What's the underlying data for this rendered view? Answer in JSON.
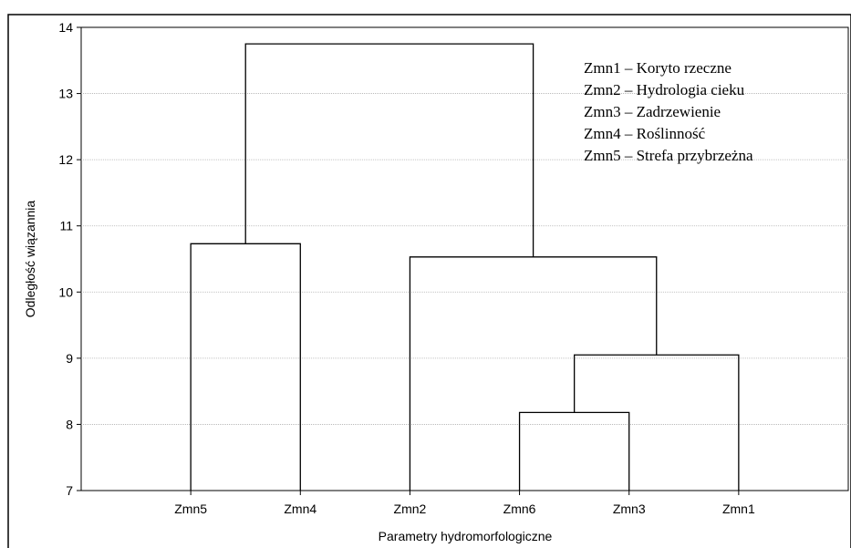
{
  "chart_data": {
    "type": "dendrogram",
    "title": "",
    "xlabel": "Parametry hydromorfologiczne",
    "ylabel": "Odległość wiązannia",
    "ylim": [
      7,
      14
    ],
    "yticks": [
      7,
      8,
      9,
      10,
      11,
      12,
      13,
      14
    ],
    "grid": true,
    "leaves": [
      "Zmn5",
      "Zmn4",
      "Zmn2",
      "Zmn6",
      "Zmn3",
      "Zmn1"
    ],
    "merges": [
      {
        "left": "Zmn6",
        "right": "Zmn3",
        "height": 8.18
      },
      {
        "left": "Zmn6+Zmn3",
        "right": "Zmn1",
        "height": 9.05
      },
      {
        "left": "Zmn2",
        "right": "Zmn6+Zmn3+Zmn1",
        "height": 10.53
      },
      {
        "left": "Zmn5",
        "right": "Zmn4",
        "height": 10.73
      },
      {
        "left": "Zmn5+Zmn4",
        "right": "Zmn2+Zmn6+Zmn3+Zmn1",
        "height": 13.75
      }
    ],
    "legend": {
      "position": "top-right",
      "items": [
        "Zmn1 – Koryto rzeczne",
        "Zmn2 – Hydrologia cieku",
        "Zmn3 – Zadrzewienie",
        "Zmn4 – Roślinność",
        "Zmn5 – Strefa przybrzeżna"
      ]
    }
  }
}
